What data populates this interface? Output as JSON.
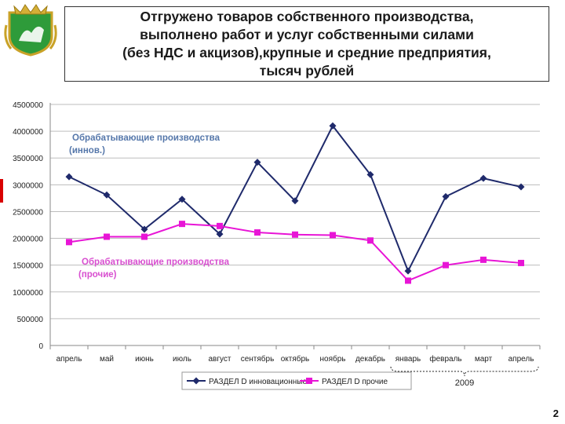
{
  "header": {
    "title": "Отгружено товаров собственного производства,\nвыполнено работ и услуг собственными силами\n(без НДС и акцизов),крупные и средние предприятия,\nтысяч рублей"
  },
  "page_number": "2",
  "colors": {
    "series1": "#1f2a6b",
    "series2": "#e815d6",
    "grid": "#bdbdbd",
    "red_mark": "#d90000"
  },
  "chart_data": {
    "type": "line",
    "categories": [
      "апрель",
      "май",
      "июнь",
      "июль",
      "август",
      "сентябрь",
      "октябрь",
      "ноябрь",
      "декабрь",
      "январь",
      "февраль",
      "март",
      "апрель"
    ],
    "y_ticks": [
      "0",
      "500000",
      "1000000",
      "1500000",
      "2000000",
      "2500000",
      "3000000",
      "3500000",
      "4000000",
      "4500000"
    ],
    "ylim": [
      0,
      4500000
    ],
    "grid": true,
    "legend_position": "bottom",
    "series": [
      {
        "name": "РАЗДЕЛ D инновационные",
        "marker": "diamond",
        "values": [
          3150000,
          2810000,
          2170000,
          2730000,
          2080000,
          3420000,
          2700000,
          4100000,
          3190000,
          1390000,
          2780000,
          3120000,
          2960000
        ]
      },
      {
        "name": "РАЗДЕЛ D прочие",
        "marker": "square",
        "values": [
          1930000,
          2030000,
          2030000,
          2270000,
          2230000,
          2110000,
          2070000,
          2060000,
          1960000,
          1210000,
          1500000,
          1600000,
          1540000
        ]
      }
    ],
    "annotations": [
      {
        "text": "Обрабатывающие производства (иннов.)"
      },
      {
        "text": "Обрабатывающие производства (прочие)"
      }
    ],
    "year_bracket": "2009"
  }
}
